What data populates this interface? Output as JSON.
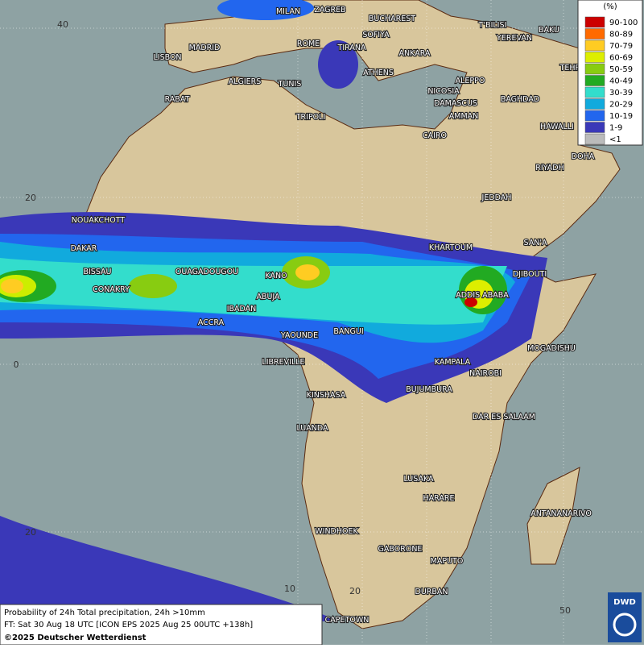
{
  "legend": {
    "title": "(%)",
    "items": [
      {
        "label": "90-100",
        "color": "#cc0000"
      },
      {
        "label": "80-89",
        "color": "#ff6a00"
      },
      {
        "label": "70-79",
        "color": "#ffcc22"
      },
      {
        "label": "60-69",
        "color": "#ddee00"
      },
      {
        "label": "50-59",
        "color": "#88cc11"
      },
      {
        "label": "40-49",
        "color": "#22aa22"
      },
      {
        "label": "30-39",
        "color": "#33ddcc"
      },
      {
        "label": "20-29",
        "color": "#11aadd"
      },
      {
        "label": "10-19",
        "color": "#2266ee"
      },
      {
        "label": "1-9",
        "color": "#3a38b8"
      },
      {
        "label": "<1",
        "color": "#bbbbbb"
      }
    ]
  },
  "cities": [
    "MILAN",
    "ZAGREB",
    "BUCHAREST",
    "T'BILISI",
    "BAKU",
    "MADRID",
    "ROME",
    "SOFIYA",
    "YEREVAN",
    "LISBON",
    "TIRANA",
    "ANKARA",
    "TEHRAN",
    "ALGIERS",
    "TUNIS",
    "ATHENS",
    "ALEPPO",
    "RABAT",
    "NICOSIA",
    "BAGHDAD",
    "DAMASCUS",
    "AMMAN",
    "TRIPOLI",
    "HAWALLI",
    "CAIRO",
    "DOHA",
    "RIYADH",
    "JEDDAH",
    "NOUAKCHOTT",
    "SAN'A",
    "KHARTOUM",
    "DAKAR",
    "DJIBOUTI",
    "BISSAU",
    "OUAGADOUGOU",
    "KANO",
    "ADDIS ABABA",
    "CONAKRY",
    "ABUJA",
    "IBADAN",
    "ACCRA",
    "YAOUNDE",
    "BANGUI",
    "MOGADISHU",
    "LIBREVILLE",
    "KAMPALA",
    "NAIROBI",
    "KINSHASA",
    "BUJUMBURA",
    "DAR ES SALAAM",
    "LUANDA",
    "LUSAKA",
    "HARARE",
    "ANTANANARIVO",
    "WINDHOEK",
    "GABORONE",
    "MAPUTO",
    "DURBAN",
    "CAPETOWN"
  ],
  "grid_labels": {
    "lat": [
      "40",
      "20",
      "0",
      "20"
    ],
    "lon": [
      "10",
      "20",
      "50"
    ]
  },
  "caption": {
    "lines": [
      "Probability of 24h Total precipitation, 24h >10mm",
      "FT: Sat 30 Aug 18 UTC [ICON EPS 2025 Aug 25 00UTC +138h]"
    ],
    "copyright": "©2025 Deutscher Wetterdienst"
  },
  "logo": "DWD"
}
